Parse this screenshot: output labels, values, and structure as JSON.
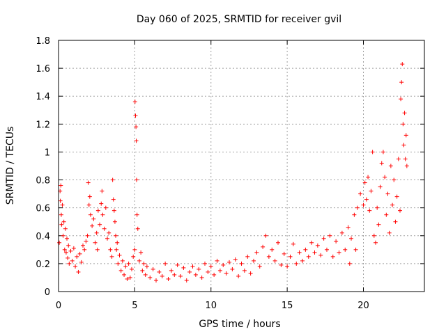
{
  "chart_data": {
    "type": "scatter",
    "title": "Day 060 of 2025, SRMTID for receiver gvil",
    "xlabel": "GPS time / hours",
    "ylabel": "SRMTID / TECUs",
    "xlim": [
      0,
      24
    ],
    "ylim": [
      0,
      1.8
    ],
    "x_ticks": [
      0,
      5,
      10,
      15,
      20
    ],
    "x_tick_labels": [
      "0",
      "5",
      "10",
      "15",
      "20"
    ],
    "y_ticks": [
      0,
      0.2,
      0.4,
      0.6,
      0.8,
      1,
      1.2,
      1.4,
      1.6,
      1.8
    ],
    "y_tick_labels": [
      "0",
      "0.2",
      "0.4",
      "0.6",
      "0.8",
      "1",
      "1.2",
      "1.4",
      "1.6",
      "1.8"
    ],
    "grid": true,
    "marker": "plus",
    "series": [
      {
        "name": "gvil",
        "color": "#ff0000",
        "points": [
          [
            0.05,
            0.35
          ],
          [
            0.1,
            0.72
          ],
          [
            0.12,
            0.65
          ],
          [
            0.15,
            0.76
          ],
          [
            0.18,
            0.55
          ],
          [
            0.2,
            0.48
          ],
          [
            0.25,
            0.62
          ],
          [
            0.3,
            0.4
          ],
          [
            0.35,
            0.5
          ],
          [
            0.4,
            0.3
          ],
          [
            0.45,
            0.45
          ],
          [
            0.5,
            0.28
          ],
          [
            0.55,
            0.38
          ],
          [
            0.6,
            0.24
          ],
          [
            0.65,
            0.33
          ],
          [
            0.7,
            0.2
          ],
          [
            0.8,
            0.29
          ],
          [
            0.9,
            0.22
          ],
          [
            1.0,
            0.31
          ],
          [
            1.1,
            0.18
          ],
          [
            1.2,
            0.25
          ],
          [
            1.3,
            0.14
          ],
          [
            1.4,
            0.27
          ],
          [
            1.5,
            0.21
          ],
          [
            1.6,
            0.33
          ],
          [
            1.7,
            0.3
          ],
          [
            1.8,
            0.36
          ],
          [
            1.9,
            0.4
          ],
          [
            1.95,
            0.78
          ],
          [
            2.0,
            0.62
          ],
          [
            2.05,
            0.68
          ],
          [
            2.1,
            0.55
          ],
          [
            2.2,
            0.47
          ],
          [
            2.3,
            0.52
          ],
          [
            2.4,
            0.35
          ],
          [
            2.5,
            0.42
          ],
          [
            2.55,
            0.3
          ],
          [
            2.6,
            0.58
          ],
          [
            2.7,
            0.48
          ],
          [
            2.8,
            0.63
          ],
          [
            2.85,
            0.72
          ],
          [
            2.9,
            0.55
          ],
          [
            3.0,
            0.45
          ],
          [
            3.1,
            0.6
          ],
          [
            3.2,
            0.38
          ],
          [
            3.3,
            0.42
          ],
          [
            3.4,
            0.3
          ],
          [
            3.5,
            0.25
          ],
          [
            3.55,
            0.8
          ],
          [
            3.6,
            0.66
          ],
          [
            3.65,
            0.58
          ],
          [
            3.7,
            0.5
          ],
          [
            3.75,
            0.4
          ],
          [
            3.8,
            0.3
          ],
          [
            3.85,
            0.35
          ],
          [
            3.9,
            0.2
          ],
          [
            4.0,
            0.26
          ],
          [
            4.1,
            0.15
          ],
          [
            4.2,
            0.22
          ],
          [
            4.3,
            0.12
          ],
          [
            4.4,
            0.18
          ],
          [
            4.5,
            0.09
          ],
          [
            4.6,
            0.2
          ],
          [
            4.7,
            0.1
          ],
          [
            4.8,
            0.16
          ],
          [
            4.9,
            0.25
          ],
          [
            5.0,
            0.3
          ],
          [
            5.02,
            1.36
          ],
          [
            5.05,
            1.26
          ],
          [
            5.08,
            1.18
          ],
          [
            5.1,
            1.08
          ],
          [
            5.12,
            0.8
          ],
          [
            5.15,
            0.55
          ],
          [
            5.2,
            0.45
          ],
          [
            5.3,
            0.22
          ],
          [
            5.4,
            0.28
          ],
          [
            5.5,
            0.15
          ],
          [
            5.6,
            0.2
          ],
          [
            5.7,
            0.12
          ],
          [
            5.8,
            0.18
          ],
          [
            6.0,
            0.1
          ],
          [
            6.2,
            0.16
          ],
          [
            6.4,
            0.08
          ],
          [
            6.6,
            0.14
          ],
          [
            6.8,
            0.11
          ],
          [
            7.0,
            0.2
          ],
          [
            7.2,
            0.09
          ],
          [
            7.4,
            0.15
          ],
          [
            7.6,
            0.12
          ],
          [
            7.8,
            0.19
          ],
          [
            8.0,
            0.11
          ],
          [
            8.2,
            0.17
          ],
          [
            8.4,
            0.08
          ],
          [
            8.6,
            0.14
          ],
          [
            8.8,
            0.18
          ],
          [
            9.0,
            0.12
          ],
          [
            9.2,
            0.16
          ],
          [
            9.4,
            0.1
          ],
          [
            9.6,
            0.2
          ],
          [
            9.8,
            0.14
          ],
          [
            10.0,
            0.18
          ],
          [
            10.2,
            0.12
          ],
          [
            10.4,
            0.22
          ],
          [
            10.6,
            0.15
          ],
          [
            10.8,
            0.19
          ],
          [
            11.0,
            0.13
          ],
          [
            11.2,
            0.21
          ],
          [
            11.4,
            0.16
          ],
          [
            11.6,
            0.23
          ],
          [
            11.8,
            0.11
          ],
          [
            12.0,
            0.2
          ],
          [
            12.2,
            0.15
          ],
          [
            12.4,
            0.25
          ],
          [
            12.6,
            0.13
          ],
          [
            12.8,
            0.22
          ],
          [
            13.0,
            0.28
          ],
          [
            13.2,
            0.18
          ],
          [
            13.4,
            0.32
          ],
          [
            13.6,
            0.4
          ],
          [
            13.8,
            0.25
          ],
          [
            14.0,
            0.3
          ],
          [
            14.2,
            0.22
          ],
          [
            14.4,
            0.35
          ],
          [
            14.6,
            0.19
          ],
          [
            14.8,
            0.27
          ],
          [
            15.0,
            0.18
          ],
          [
            15.2,
            0.25
          ],
          [
            15.4,
            0.34
          ],
          [
            15.6,
            0.2
          ],
          [
            15.8,
            0.28
          ],
          [
            16.0,
            0.22
          ],
          [
            16.2,
            0.3
          ],
          [
            16.4,
            0.25
          ],
          [
            16.6,
            0.35
          ],
          [
            16.8,
            0.28
          ],
          [
            17.0,
            0.33
          ],
          [
            17.2,
            0.26
          ],
          [
            17.4,
            0.38
          ],
          [
            17.6,
            0.3
          ],
          [
            17.8,
            0.4
          ],
          [
            18.0,
            0.25
          ],
          [
            18.2,
            0.36
          ],
          [
            18.4,
            0.28
          ],
          [
            18.6,
            0.42
          ],
          [
            18.8,
            0.3
          ],
          [
            19.0,
            0.46
          ],
          [
            19.1,
            0.2
          ],
          [
            19.2,
            0.38
          ],
          [
            19.4,
            0.55
          ],
          [
            19.5,
            0.3
          ],
          [
            19.6,
            0.6
          ],
          [
            19.8,
            0.7
          ],
          [
            20.0,
            0.62
          ],
          [
            20.1,
            0.78
          ],
          [
            20.2,
            0.66
          ],
          [
            20.3,
            0.82
          ],
          [
            20.4,
            0.58
          ],
          [
            20.5,
            0.72
          ],
          [
            20.6,
            1.0
          ],
          [
            20.7,
            0.4
          ],
          [
            20.8,
            0.35
          ],
          [
            20.9,
            0.6
          ],
          [
            21.0,
            0.48
          ],
          [
            21.1,
            0.75
          ],
          [
            21.2,
            0.92
          ],
          [
            21.3,
            1.0
          ],
          [
            21.4,
            0.82
          ],
          [
            21.5,
            0.55
          ],
          [
            21.6,
            0.7
          ],
          [
            21.7,
            0.42
          ],
          [
            21.8,
            0.9
          ],
          [
            21.9,
            0.62
          ],
          [
            22.0,
            0.8
          ],
          [
            22.1,
            0.5
          ],
          [
            22.2,
            0.68
          ],
          [
            22.3,
            0.95
          ],
          [
            22.4,
            0.58
          ],
          [
            22.45,
            1.38
          ],
          [
            22.5,
            1.5
          ],
          [
            22.55,
            1.63
          ],
          [
            22.6,
            1.2
          ],
          [
            22.65,
            1.05
          ],
          [
            22.7,
            1.28
          ],
          [
            22.75,
            0.95
          ],
          [
            22.8,
            1.12
          ],
          [
            22.85,
            0.9
          ]
        ]
      }
    ]
  }
}
